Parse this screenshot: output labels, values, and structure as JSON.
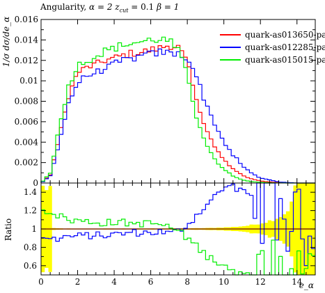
{
  "chart_data": {
    "type": "line",
    "title": "Angularity, α = 2 z_cut = 0.1 β = 1",
    "title_parts": {
      "prefix": "Angularity,",
      "alpha": "α = 2",
      "zcut": "z",
      "zcut_sub": "cut",
      "zcut_val": "= 0.1",
      "beta": "β = 1"
    },
    "main_panel": {
      "ylabel": "1/σ dσ/de_α",
      "ylim": [
        0,
        0.016
      ],
      "yticks": [
        0,
        0.002,
        0.004,
        0.006,
        0.008,
        0.01,
        0.012,
        0.014,
        0.016
      ],
      "ytick_labels": [
        "0",
        "0.002",
        "0.004",
        "0.006",
        "0.008",
        "0.01",
        "0.012",
        "0.014",
        "0.016"
      ]
    },
    "ratio_panel": {
      "ylabel": "Ratio",
      "ylim": [
        0.5,
        1.5
      ],
      "yticks": [
        0.6,
        0.8,
        1.0,
        1.2,
        1.4
      ],
      "ytick_labels": [
        "0.6",
        "0.8",
        "1",
        "1.2",
        "1.4"
      ],
      "reference_line": 1.0,
      "band_color": "#ffff00"
    },
    "xlabel": "e_α",
    "xlim": [
      0,
      15
    ],
    "xticks": [
      0,
      2,
      4,
      6,
      8,
      10,
      12,
      14
    ],
    "xtick_labels": [
      "0",
      "2",
      "4",
      "6",
      "8",
      "10",
      "12",
      "14"
    ],
    "bin_width": 0.2,
    "legend_position": "top-right",
    "series": [
      {
        "name": "quark-as013650-pa",
        "color": "#ff0000",
        "x": [
          0.5,
          1,
          1.5,
          2,
          2.5,
          3,
          3.5,
          4,
          4.5,
          5,
          5.5,
          6,
          6.5,
          7,
          7.5,
          8,
          8.5,
          9,
          9.5,
          10,
          10.5,
          11,
          11.5,
          12,
          12.5,
          13,
          13.5,
          14
        ],
        "y": [
          0.0008,
          0.0045,
          0.0085,
          0.0108,
          0.0113,
          0.0116,
          0.012,
          0.0122,
          0.0125,
          0.0127,
          0.0128,
          0.013,
          0.0132,
          0.0135,
          0.0133,
          0.0118,
          0.008,
          0.0055,
          0.0035,
          0.0022,
          0.0014,
          0.0008,
          0.0004,
          0.0002,
          0.0001,
          5e-05,
          2e-05,
          0.0
        ],
        "ratio": [
          1,
          1,
          1,
          1,
          1,
          1,
          1,
          1,
          1,
          1,
          1,
          1,
          1,
          1,
          1,
          1,
          1,
          1,
          1,
          1,
          1,
          1,
          1,
          1,
          1,
          1,
          1,
          1
        ]
      },
      {
        "name": "quark-as012285-pa",
        "color": "#0000ff",
        "x": [
          0.5,
          1,
          1.5,
          2,
          2.5,
          3,
          3.5,
          4,
          4.5,
          5,
          5.5,
          6,
          6.5,
          7,
          7.5,
          8,
          8.5,
          9,
          9.5,
          10,
          10.5,
          11,
          11.5,
          12,
          12.5,
          13,
          13.5,
          14
        ],
        "y": [
          0.0007,
          0.004,
          0.0078,
          0.0098,
          0.0105,
          0.0108,
          0.0112,
          0.0116,
          0.012,
          0.0122,
          0.0124,
          0.0126,
          0.0128,
          0.0127,
          0.0126,
          0.0123,
          0.0105,
          0.0078,
          0.0058,
          0.004,
          0.0028,
          0.0017,
          0.001,
          0.0005,
          0.0003,
          0.0001,
          5e-05,
          0.0
        ],
        "ratio": [
          0.88,
          0.9,
          0.92,
          0.92,
          0.93,
          0.93,
          0.93,
          0.94,
          0.95,
          0.96,
          0.96,
          0.96,
          0.97,
          0.95,
          0.98,
          1.04,
          1.15,
          1.25,
          1.35,
          1.45,
          1.45,
          1.4,
          1.35,
          1.3,
          1.25,
          1.2,
          1.1,
          1.0
        ]
      },
      {
        "name": "quark-as015015-pa",
        "color": "#00ee00",
        "x": [
          0.5,
          1,
          1.5,
          2,
          2.5,
          3,
          3.5,
          4,
          4.5,
          5,
          5.5,
          6,
          6.5,
          7,
          7.5,
          8,
          8.5,
          9,
          9.5,
          10,
          10.5,
          11,
          11.5,
          12,
          12.5,
          13,
          13.5,
          14
        ],
        "y": [
          0.001,
          0.0055,
          0.0095,
          0.0115,
          0.012,
          0.0124,
          0.0129,
          0.0132,
          0.0135,
          0.0137,
          0.0138,
          0.014,
          0.0141,
          0.0139,
          0.013,
          0.0105,
          0.0065,
          0.004,
          0.0023,
          0.0013,
          0.0007,
          0.0003,
          0.00015,
          7e-05,
          3e-05,
          1e-05,
          0.0,
          0.0
        ],
        "ratio": [
          1.2,
          1.14,
          1.1,
          1.09,
          1.08,
          1.07,
          1.07,
          1.07,
          1.07,
          1.06,
          1.06,
          1.06,
          1.05,
          1.02,
          0.98,
          0.9,
          0.82,
          0.72,
          0.65,
          0.6,
          0.55,
          0.5,
          0.48,
          0.46,
          0.45,
          0.45,
          0.45,
          0.45
        ]
      }
    ]
  }
}
